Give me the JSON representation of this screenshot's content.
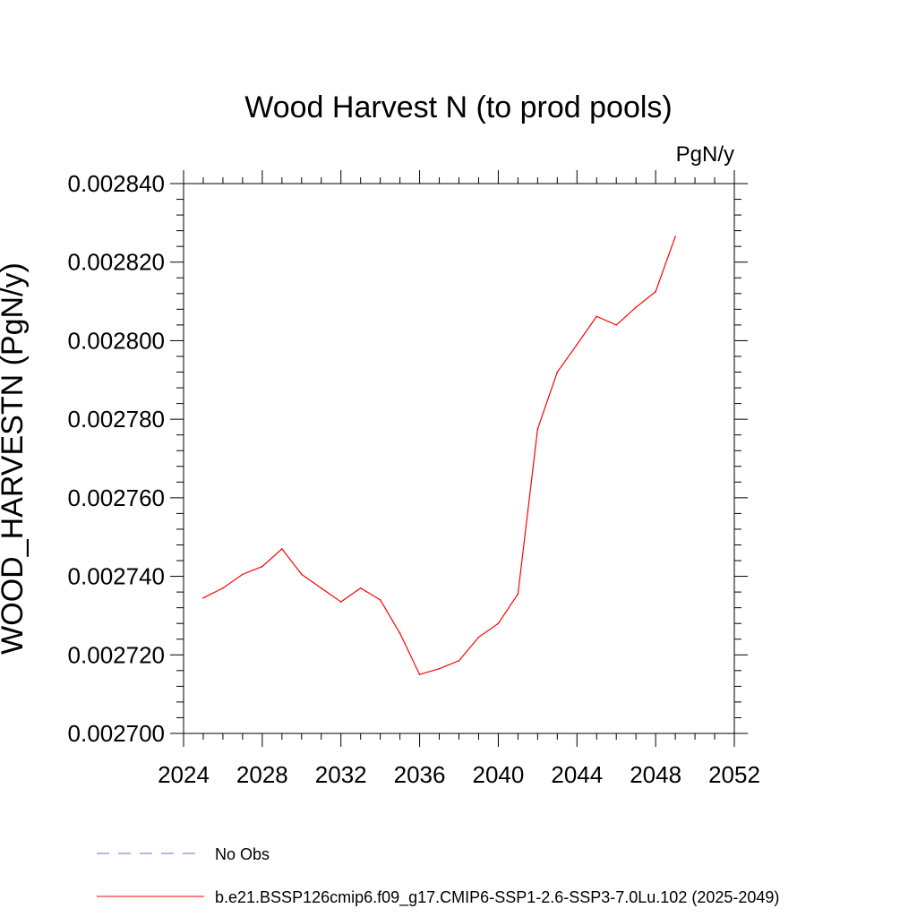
{
  "chart_data": {
    "type": "line",
    "title": "Wood Harvest N (to prod pools)",
    "units_label": "PgN/y",
    "ylabel": "WOOD_HARVESTN  (PgN/y)",
    "xlabel": "",
    "xlim": [
      2024,
      2052
    ],
    "ylim": [
      0.0027,
      0.00284
    ],
    "x_ticks": [
      "2024",
      "2028",
      "2032",
      "2036",
      "2040",
      "2044",
      "2048",
      "2052"
    ],
    "y_ticks": [
      "0.002700",
      "0.002720",
      "0.002740",
      "0.002760",
      "0.002780",
      "0.002800",
      "0.002820",
      "0.002840"
    ],
    "series": [
      {
        "name": "b.e21.BSSP126cmip6.f09_g17.CMIP6-SSP1-2.6-SSP3-7.0Lu.102 (2025-2049)",
        "color": "#ff0000",
        "x": [
          2025,
          2026,
          2027,
          2028,
          2029,
          2030,
          2031,
          2032,
          2033,
          2034,
          2035,
          2036,
          2037,
          2038,
          2039,
          2040,
          2041,
          2042,
          2043,
          2044,
          2045,
          2046,
          2047,
          2048,
          2049
        ],
        "y": [
          0.0027345,
          0.002737,
          0.0027405,
          0.0027425,
          0.002747,
          0.0027405,
          0.002737,
          0.0027335,
          0.002737,
          0.002734,
          0.0027255,
          0.002715,
          0.0027165,
          0.0027185,
          0.0027245,
          0.002728,
          0.0027355,
          0.0027775,
          0.002792,
          0.002799,
          0.0028062,
          0.002804,
          0.0028085,
          0.0028125,
          0.0028265
        ]
      }
    ],
    "legend": [
      {
        "label": "No Obs",
        "color": "#7b68c0",
        "style": "dashed"
      },
      {
        "label": "b.e21.BSSP126cmip6.f09_g17.CMIP6-SSP1-2.6-SSP3-7.0Lu.102 (2025-2049)",
        "color": "#ff0000",
        "style": "solid"
      }
    ],
    "legend_position": "bottom",
    "grid": false
  }
}
